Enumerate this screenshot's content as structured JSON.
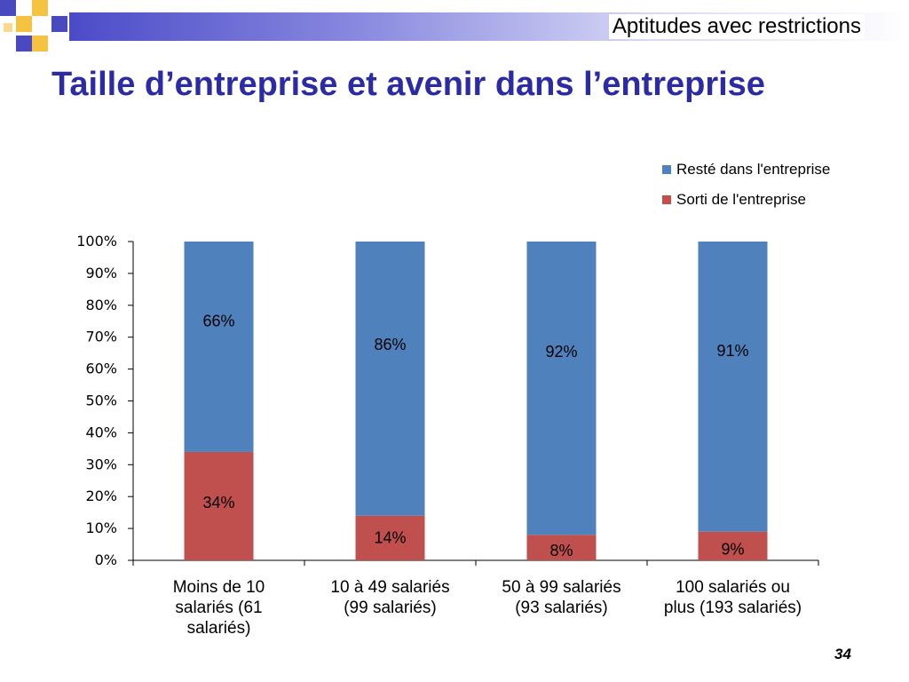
{
  "header": {
    "topic": "Aptitudes avec restrictions",
    "title": "Taille d’entreprise et avenir dans l’entreprise"
  },
  "slide_number": "34",
  "colors": {
    "title": "#2b2ba6",
    "resté": "#4f81bd",
    "sorti": "#c0504d",
    "deco_purple": "#4a4ac0",
    "deco_gold": "#f5c242"
  },
  "chart_data": {
    "type": "bar",
    "stacked": true,
    "categories": [
      "Moins de 10 salariés (61 salariés)",
      "10 à 49 salariés (99 salariés)",
      "50 à 99 salariés (93 salariés)",
      "100 salariés ou plus (193 salariés)"
    ],
    "category_lines": [
      [
        "Moins de 10",
        "salariés (61",
        "salariés)"
      ],
      [
        "10 à 49 salariés",
        "(99 salariés)"
      ],
      [
        "50 à 99 salariés",
        "(93 salariés)"
      ],
      [
        "100 salariés ou",
        "plus (193 salariés)"
      ]
    ],
    "series": [
      {
        "name": "Sorti de l'entreprise",
        "values": [
          34,
          14,
          8,
          9
        ],
        "labels": [
          "34%",
          "14%",
          "8%",
          "9%"
        ],
        "color": "#c0504d"
      },
      {
        "name": "Resté dans l'entreprise",
        "values": [
          66,
          86,
          92,
          91
        ],
        "labels": [
          "66%",
          "86%",
          "92%",
          "91%"
        ],
        "color": "#4f81bd"
      }
    ],
    "legend_order": [
      "Resté dans l'entreprise",
      "Sorti de l'entreprise"
    ],
    "yticks": [
      "0%",
      "10%",
      "20%",
      "30%",
      "40%",
      "50%",
      "60%",
      "70%",
      "80%",
      "90%",
      "100%"
    ],
    "ylim": [
      0,
      100
    ],
    "legend_position": "top-right",
    "grid": false
  }
}
